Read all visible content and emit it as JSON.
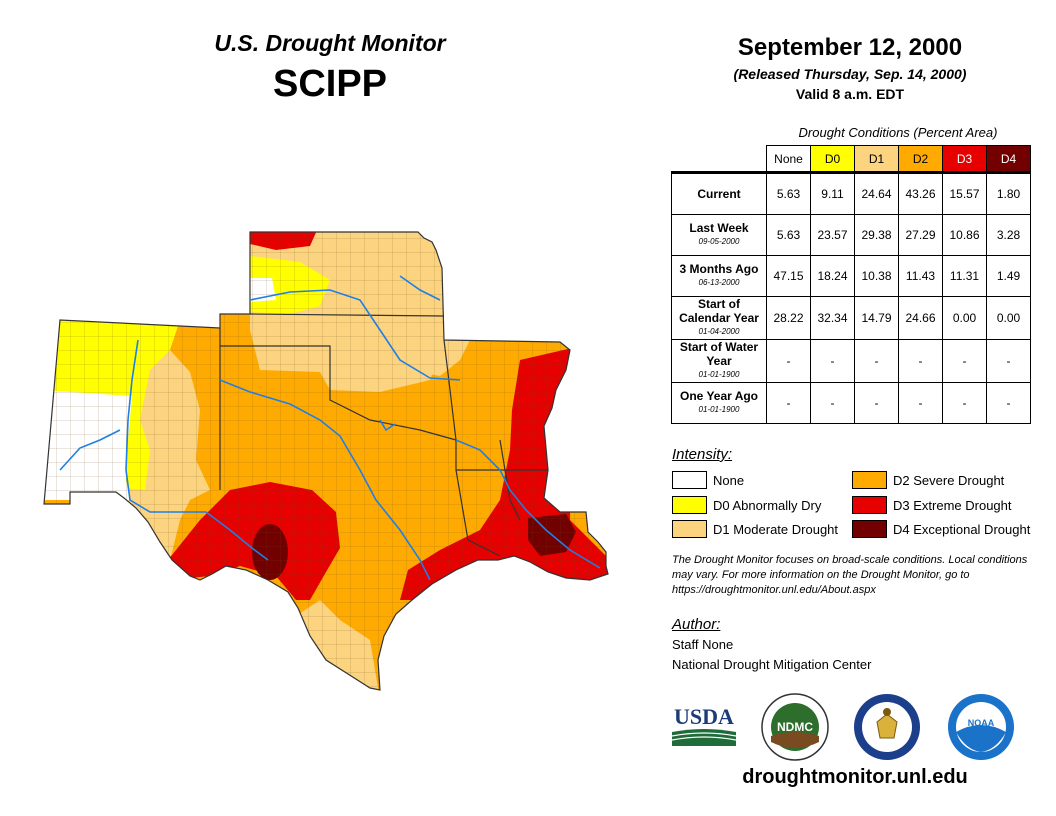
{
  "header": {
    "title_line1": "U.S. Drought Monitor",
    "title_line2": "SCIPP",
    "date": "September 12, 2000",
    "released": "(Released Thursday, Sep. 14, 2000)",
    "valid": "Valid 8 a.m. EDT"
  },
  "table": {
    "caption": "Drought Conditions (Percent Area)",
    "columns": [
      "None",
      "D0",
      "D1",
      "D2",
      "D3",
      "D4"
    ],
    "column_colors": [
      "#ffffff",
      "#ffff00",
      "#fcd37f",
      "#ffaa00",
      "#e60000",
      "#730000"
    ],
    "rows": [
      {
        "label": "Current",
        "date": "",
        "values": [
          "5.63",
          "9.11",
          "24.64",
          "43.26",
          "15.57",
          "1.80"
        ]
      },
      {
        "label": "Last Week",
        "date": "09-05-2000",
        "values": [
          "5.63",
          "23.57",
          "29.38",
          "27.29",
          "10.86",
          "3.28"
        ]
      },
      {
        "label": "3 Months Ago",
        "date": "06-13-2000",
        "values": [
          "47.15",
          "18.24",
          "10.38",
          "11.43",
          "11.31",
          "1.49"
        ]
      },
      {
        "label": "Start of Calendar Year",
        "date": "01-04-2000",
        "values": [
          "28.22",
          "32.34",
          "14.79",
          "24.66",
          "0.00",
          "0.00"
        ]
      },
      {
        "label": "Start of Water Year",
        "date": "01-01-1900",
        "values": [
          "-",
          "-",
          "-",
          "-",
          "-",
          "-"
        ]
      },
      {
        "label": "One Year Ago",
        "date": "01-01-1900",
        "values": [
          "-",
          "-",
          "-",
          "-",
          "-",
          "-"
        ]
      }
    ]
  },
  "legend": {
    "title": "Intensity:",
    "items": [
      {
        "label": "None",
        "color": "#ffffff"
      },
      {
        "label": "D0 Abnormally Dry",
        "color": "#ffff00"
      },
      {
        "label": "D1 Moderate Drought",
        "color": "#fcd37f"
      },
      {
        "label": "D2 Severe Drought",
        "color": "#ffaa00"
      },
      {
        "label": "D3 Extreme Drought",
        "color": "#e60000"
      },
      {
        "label": "D4 Exceptional Drought",
        "color": "#730000"
      }
    ]
  },
  "note": "The Drought Monitor focuses on broad-scale conditions. Local conditions may vary. For more information on the Drought Monitor, go to https://droughtmonitor.unl.edu/About.aspx",
  "author": {
    "title": "Author:",
    "name": "Staff None",
    "org": "National Drought Mitigation Center"
  },
  "logos": {
    "usda": "USDA",
    "ndmc": "NDMC",
    "noaa": "NOAA"
  },
  "website": "droughtmonitor.unl.edu"
}
